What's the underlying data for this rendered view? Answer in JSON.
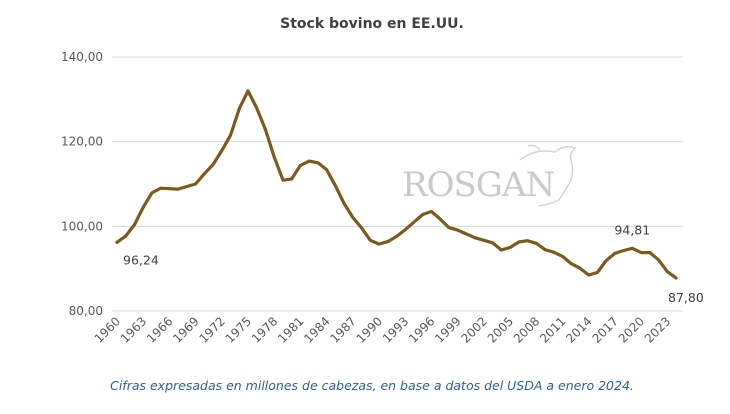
{
  "chart_data": {
    "type": "line",
    "title": "Stock bovino en EE.UU.",
    "caption": "Cifras expresadas en millones de cabezas, en base a datos del USDA a enero 2024.",
    "watermark": "ROSGAN",
    "xlabel": "",
    "ylabel": "",
    "ylim": [
      80,
      140
    ],
    "yticks": [
      "80,00",
      "100,00",
      "120,00",
      "140,00"
    ],
    "ytick_values": [
      80,
      100,
      120,
      140
    ],
    "xtick_labels": [
      "1960",
      "1963",
      "1966",
      "1969",
      "1972",
      "1975",
      "1978",
      "1981",
      "1984",
      "1987",
      "1990",
      "1993",
      "1996",
      "1999",
      "2002",
      "2005",
      "2008",
      "2011",
      "2014",
      "2017",
      "2020",
      "2023"
    ],
    "grid": true,
    "line_color": "#7b5a1e",
    "x": [
      1960,
      1961,
      1962,
      1963,
      1964,
      1965,
      1966,
      1967,
      1968,
      1969,
      1970,
      1971,
      1972,
      1973,
      1974,
      1975,
      1976,
      1977,
      1978,
      1979,
      1980,
      1981,
      1982,
      1983,
      1984,
      1985,
      1986,
      1987,
      1988,
      1989,
      1990,
      1991,
      1992,
      1993,
      1994,
      1995,
      1996,
      1997,
      1998,
      1999,
      2000,
      2001,
      2002,
      2003,
      2004,
      2005,
      2006,
      2007,
      2008,
      2009,
      2010,
      2011,
      2012,
      2013,
      2014,
      2015,
      2016,
      2017,
      2018,
      2019,
      2020,
      2021,
      2022,
      2023,
      2024
    ],
    "series": [
      {
        "name": "Stock bovino",
        "values": [
          96.24,
          97.7,
          100.4,
          104.5,
          107.9,
          109.0,
          108.9,
          108.8,
          109.4,
          110.0,
          112.4,
          114.6,
          117.9,
          121.5,
          127.8,
          132.0,
          127.9,
          122.8,
          116.4,
          110.9,
          111.2,
          114.4,
          115.4,
          115.0,
          113.4,
          109.6,
          105.4,
          102.1,
          99.6,
          96.7,
          95.8,
          96.4,
          97.6,
          99.2,
          101.0,
          102.8,
          103.5,
          101.7,
          99.7,
          99.1,
          98.2,
          97.3,
          96.7,
          96.1,
          94.4,
          95.0,
          96.3,
          96.6,
          96.0,
          94.5,
          93.9,
          92.9,
          91.2,
          90.1,
          88.5,
          89.1,
          91.9,
          93.6,
          94.3,
          94.81,
          93.8,
          93.8,
          92.1,
          89.3,
          87.8
        ]
      }
    ],
    "annotations": [
      {
        "year": 1960,
        "text": "96,24"
      },
      {
        "year": 2019,
        "text": "94,81"
      },
      {
        "year": 2024,
        "text": "87,80"
      }
    ]
  }
}
